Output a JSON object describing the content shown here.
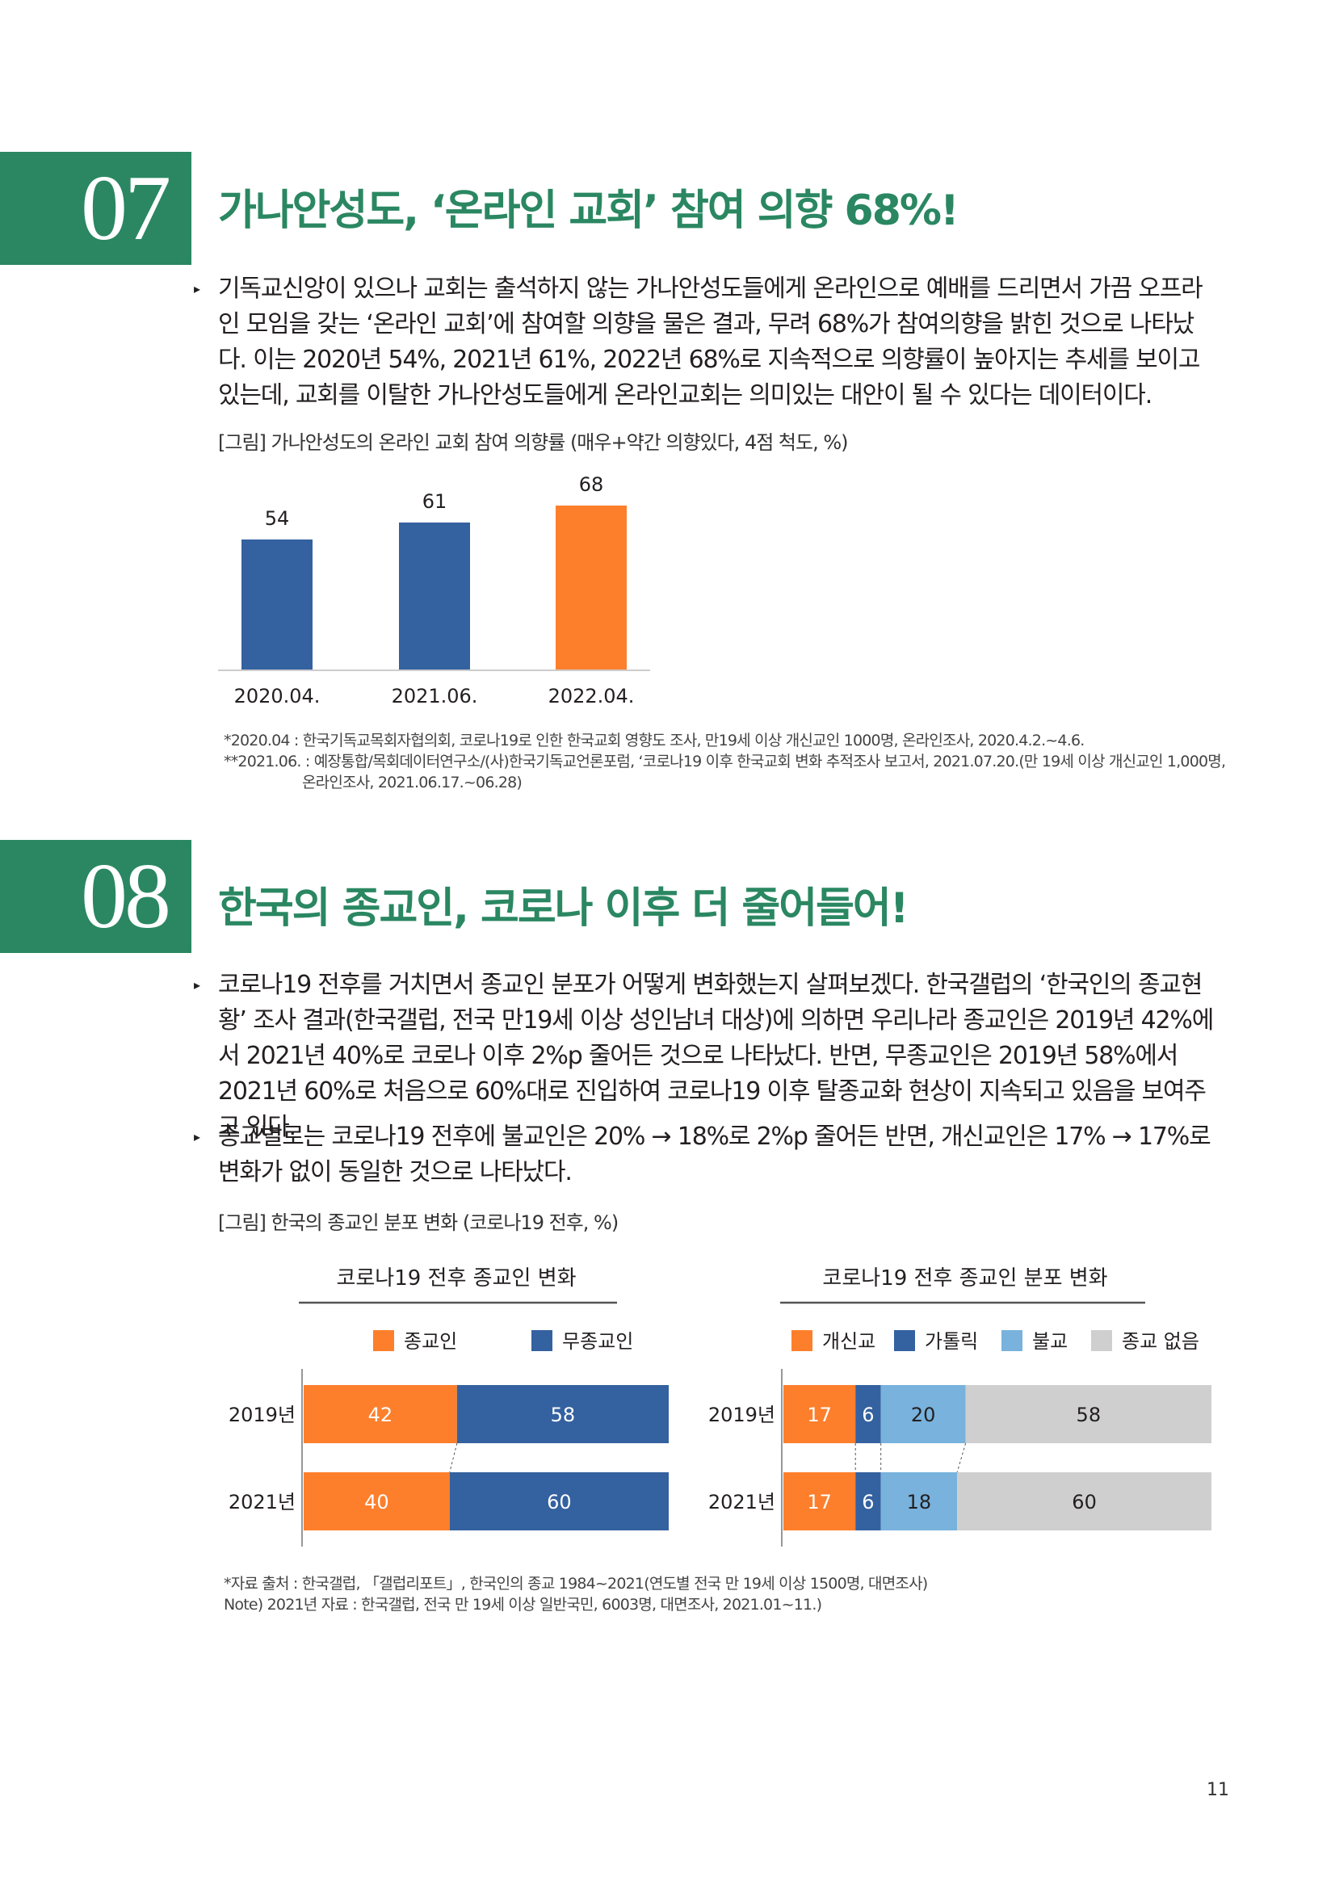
{
  "section07": {
    "number": "07",
    "title": "가나안성도, ‘온라인 교회’ 참여 의향 68%!",
    "bullet": "▸",
    "paragraph": "기독교신앙이 있으나 교회는 출석하지 않는 가나안성도들에게 온라인으로 예배를 드리면서 가끔 오프라인 모임을 갖는 ‘온라인 교회’에 참여할 의향을 물은 결과, 무려 68%가 참여의향을 밝힌 것으로 나타났다. 이는 2020년 54%, 2021년 61%, 2022년 68%로 지속적으로 의향률이 높아지는 추세를 보이고 있는데, 교회를 이탈한 가나안성도들에게 온라인교회는 의미있는 대안이 될 수 있다는 데이터이다.",
    "figure_caption": "[그림] 가나안성도의 온라인 교회 참여 의향률 (매우+약간 의향있다, 4점 척도, %)",
    "note1": "*2020.04 : 한국기독교목회자협의회, 코로나19로 인한 한국교회 영향도 조사, 만19세 이상 개신교인 1000명, 온라인조사, 2020.4.2.~4.6.",
    "note2a": "**2021.06. : 예장통합/목회데이터연구소/(사)한국기독교언론포럼, ‘코로나19 이후 한국교회 변화 추적조사 보고서, 2021.07.20.(만 19세 이상 개신교인 1,000명,",
    "note2b": "온라인조사, 2021.06.17.~06.28)"
  },
  "section08": {
    "number": "08",
    "title": "한국의 종교인, 코로나 이후 더 줄어들어!",
    "bullet1": "▸",
    "paragraph1": "코로나19 전후를 거치면서 종교인 분포가 어떻게 변화했는지 살펴보겠다. 한국갤럽의 ‘한국인의 종교현황’ 조사 결과(한국갤럽, 전국 만19세 이상 성인남녀 대상)에 의하면 우리나라 종교인은 2019년 42%에서 2021년 40%로 코로나 이후 2%p 줄어든 것으로 나타났다. 반면, 무종교인은 2019년 58%에서 2021년 60%로 처음으로 60%대로 진입하여 코로나19 이후 탈종교화 현상이 지속되고 있음을 보여주고 있다.",
    "bullet2": "▸",
    "paragraph2": "종교별로는 코로나19 전후에 불교인은 20% → 18%로 2%p 줄어든 반면, 개신교인은 17% → 17%로 변화가 없이 동일한 것으로 나타났다.",
    "figure_caption": "[그림] 한국의 종교인 분포 변화 (코로나19 전후, %)",
    "note1": "*자료 출처 : 한국갤럽, 「갤럽리포트」, 한국인의 종교 1984~2021(연도별 전국 만 19세 이상 1500명, 대면조사)",
    "note2": "Note) 2021년 자료 : 한국갤럽, 전국 만 19세 이상 일반국민, 6003명, 대면조사, 2021.01~11.)"
  },
  "page_number": "11",
  "chart_data": [
    {
      "type": "bar",
      "categories": [
        "2020.04.",
        "2021.06.",
        "2022.04."
      ],
      "values": [
        54,
        61,
        68
      ],
      "colors": [
        "#34619f",
        "#34619f",
        "#fd7f2c"
      ],
      "title": "",
      "ylim": [
        0,
        100
      ]
    },
    {
      "type": "bar",
      "orientation": "horizontal-stacked",
      "title": "코로나19 전후 종교인 변화",
      "categories": [
        "2019년",
        "2021년"
      ],
      "series": [
        {
          "name": "종교인",
          "values": [
            42,
            40
          ],
          "color": "#fd7f2c"
        },
        {
          "name": "무종교인",
          "values": [
            58,
            60
          ],
          "color": "#34619f"
        }
      ],
      "legend": "top"
    },
    {
      "type": "bar",
      "orientation": "horizontal-stacked",
      "title": "코로나19 전후 종교인 분포 변화",
      "categories": [
        "2019년",
        "2021년"
      ],
      "series": [
        {
          "name": "개신교",
          "values": [
            17,
            17
          ],
          "color": "#fd7f2c"
        },
        {
          "name": "가톨릭",
          "values": [
            6,
            6
          ],
          "color": "#34619f"
        },
        {
          "name": "불교",
          "values": [
            20,
            18
          ],
          "color": "#78b2dd"
        },
        {
          "name": "종교 없음",
          "values": [
            58,
            60
          ],
          "color": "#cfcfcf"
        }
      ],
      "legend": "top"
    }
  ]
}
